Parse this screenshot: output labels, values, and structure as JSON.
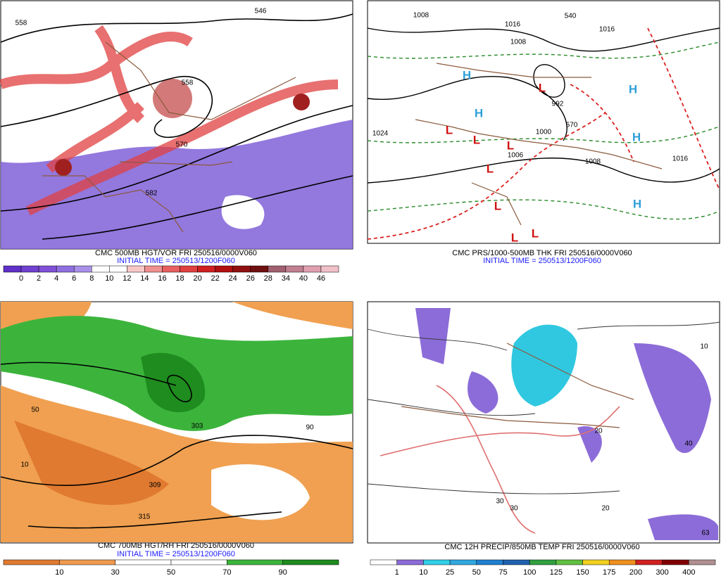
{
  "panels": [
    {
      "caption": "CMC 500MB HGT/VOR FRI 250516/0000V060",
      "initial_time": "INITIAL TIME = 250513/1200F060",
      "contour_labels": [
        "558",
        "546",
        "558",
        "570",
        "582"
      ],
      "colorbar": {
        "labels": [
          "0",
          "2",
          "4",
          "6",
          "8",
          "10",
          "12",
          "14",
          "16",
          "18",
          "20",
          "22",
          "24",
          "26",
          "28",
          "34",
          "40",
          "46"
        ],
        "colors": [
          "#6030c8",
          "#7040d0",
          "#8050d8",
          "#9070e0",
          "#a890e8",
          "#ffffff",
          "#ffffff",
          "#f8c8c8",
          "#f09090",
          "#e86060",
          "#e04040",
          "#d02020",
          "#b01010",
          "#901010",
          "#701010",
          "#a06070",
          "#c08090",
          "#e0a0b0",
          "#f0c0c8"
        ]
      }
    },
    {
      "caption": "CMC PRS/1000-500MB THK FRI 250516/0000V060",
      "initial_time": "INITIAL TIME = 250513/1200F060",
      "contour_labels": [
        "1008",
        "1016",
        "1008",
        "1016",
        "1024",
        "992",
        "1000",
        "1006",
        "1008",
        "1016",
        "540",
        "570"
      ],
      "pressure_centers": [
        "H",
        "H",
        "H",
        "H",
        "H",
        "L",
        "L",
        "L",
        "L",
        "L",
        "L",
        "L",
        "L"
      ]
    },
    {
      "caption": "CMC 700MB HGT/RH FRI 250516/0000V060",
      "initial_time": "INITIAL TIME = 250513/1200F060",
      "contour_labels": [
        "309",
        "315",
        "303",
        "10",
        "50",
        "90"
      ],
      "colorbar": {
        "labels": [
          "10",
          "30",
          "50",
          "70",
          "90"
        ],
        "colors": [
          "#e07a30",
          "#f09a50",
          "#ffffff",
          "#ffffff",
          "#3cb43c",
          "#1e8c1e"
        ]
      }
    },
    {
      "caption": "CMC 12H PRECIP/850MB TEMP FRI 250516/0000V060",
      "contour_labels": [
        "30",
        "30",
        "20",
        "20",
        "10",
        "40",
        "63"
      ],
      "colorbar": {
        "labels": [
          "1",
          "10",
          "25",
          "50",
          "75",
          "100",
          "125",
          "150",
          "175",
          "200",
          "300",
          "400"
        ],
        "colors": [
          "#ffffff",
          "#8c6cd8",
          "#30d0e8",
          "#30a8e0",
          "#2080d0",
          "#2060b0",
          "#30a040",
          "#60c040",
          "#f0d020",
          "#f09020",
          "#d02020",
          "#800000",
          "#b09090"
        ]
      }
    }
  ]
}
